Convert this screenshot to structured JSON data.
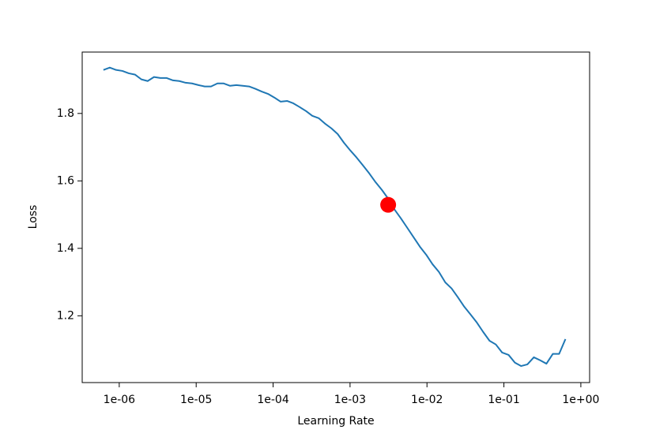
{
  "chart_data": {
    "type": "line",
    "xlabel": "Learning Rate",
    "ylabel": "Loss",
    "xscale": "log",
    "xlim": [
      3.3e-07,
      1.3
    ],
    "ylim": [
      1.002,
      1.982
    ],
    "xticks": [
      {
        "value": 1e-06,
        "label": "1e-06"
      },
      {
        "value": 1e-05,
        "label": "1e-05"
      },
      {
        "value": 0.0001,
        "label": "1e-04"
      },
      {
        "value": 0.001,
        "label": "1e-03"
      },
      {
        "value": 0.01,
        "label": "1e-02"
      },
      {
        "value": 0.1,
        "label": "1e-01"
      },
      {
        "value": 1,
        "label": "1e+00"
      }
    ],
    "yticks": [
      1.2,
      1.4,
      1.6,
      1.8
    ],
    "x": [
      6.23e-07,
      7.53e-07,
      9.1e-07,
      1.1e-06,
      1.33e-06,
      1.61e-06,
      1.94e-06,
      2.34e-06,
      2.83e-06,
      3.42e-06,
      4.14e-06,
      5e-06,
      6.04e-06,
      7.3e-06,
      8.82e-06,
      1.07e-05,
      1.29e-05,
      1.56e-05,
      1.89e-05,
      2.28e-05,
      2.76e-05,
      3.33e-05,
      4.03e-05,
      4.87e-05,
      5.88e-05,
      7.11e-05,
      8.59e-05,
      0.000104,
      0.000125,
      0.000152,
      0.000183,
      0.000221,
      0.000268,
      0.000323,
      0.000391,
      0.000472,
      0.000571,
      0.00069,
      0.000834,
      0.00101,
      0.00122,
      0.00147,
      0.00178,
      0.00215,
      0.0026,
      0.00314,
      0.00379,
      0.00458,
      0.00554,
      0.00669,
      0.00809,
      0.00978,
      0.0118,
      0.0143,
      0.0173,
      0.0209,
      0.0252,
      0.0305,
      0.0368,
      0.0445,
      0.0538,
      0.065,
      0.0785,
      0.0949,
      0.115,
      0.139,
      0.167,
      0.202,
      0.245,
      0.296,
      0.357,
      0.432,
      0.522,
      0.631
    ],
    "series": [
      {
        "color": "#1f77b4",
        "values": [
          1.929,
          1.936,
          1.929,
          1.926,
          1.919,
          1.915,
          1.901,
          1.896,
          1.908,
          1.905,
          1.905,
          1.898,
          1.896,
          1.891,
          1.889,
          1.884,
          1.88,
          1.88,
          1.889,
          1.889,
          1.882,
          1.884,
          1.882,
          1.88,
          1.873,
          1.865,
          1.858,
          1.847,
          1.835,
          1.837,
          1.83,
          1.819,
          1.807,
          1.793,
          1.786,
          1.77,
          1.756,
          1.739,
          1.713,
          1.69,
          1.669,
          1.646,
          1.622,
          1.596,
          1.573,
          1.547,
          1.515,
          1.489,
          1.461,
          1.433,
          1.405,
          1.381,
          1.353,
          1.33,
          1.299,
          1.281,
          1.255,
          1.227,
          1.204,
          1.18,
          1.152,
          1.126,
          1.115,
          1.091,
          1.084,
          1.061,
          1.051,
          1.056,
          1.077,
          1.068,
          1.058,
          1.087,
          1.087,
          1.131
        ]
      }
    ],
    "marker": {
      "x": 0.00313,
      "y": 1.529,
      "color": "red"
    }
  }
}
